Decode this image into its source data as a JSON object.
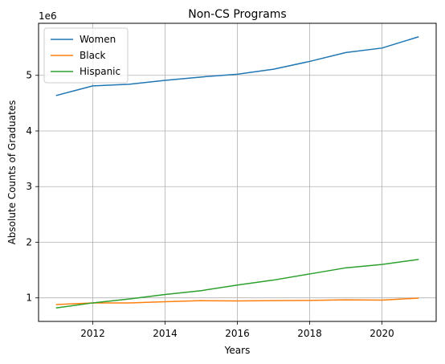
{
  "chart_data": {
    "type": "line",
    "title": "Non-CS Programs",
    "xlabel": "Years",
    "ylabel": "Absolute Counts of Graduates",
    "y_offset_label": "1e6",
    "x": [
      2011,
      2012,
      2013,
      2014,
      2015,
      2016,
      2017,
      2018,
      2019,
      2020,
      2021
    ],
    "series": [
      {
        "name": "Women",
        "color": "#1f77b4",
        "values": [
          4640000,
          4810000,
          4840000,
          4910000,
          4970000,
          5020000,
          5110000,
          5250000,
          5410000,
          5490000,
          5690000
        ]
      },
      {
        "name": "Black",
        "color": "#ff7f0e",
        "values": [
          880000,
          910000,
          910000,
          930000,
          950000,
          945000,
          950000,
          955000,
          965000,
          960000,
          995000
        ]
      },
      {
        "name": "Hispanic",
        "color": "#2ca02c",
        "values": [
          820000,
          910000,
          980000,
          1060000,
          1130000,
          1230000,
          1320000,
          1430000,
          1540000,
          1600000,
          1690000
        ]
      }
    ],
    "xticks": [
      2012,
      2014,
      2016,
      2018,
      2020
    ],
    "yticks": [
      1000000,
      2000000,
      3000000,
      4000000,
      5000000
    ],
    "ytick_labels": [
      "1",
      "2",
      "3",
      "4",
      "5"
    ],
    "xlim": [
      2010.5,
      2021.5
    ],
    "ylim": [
      577000,
      5935000
    ],
    "grid": true,
    "legend_position": "top-left"
  }
}
